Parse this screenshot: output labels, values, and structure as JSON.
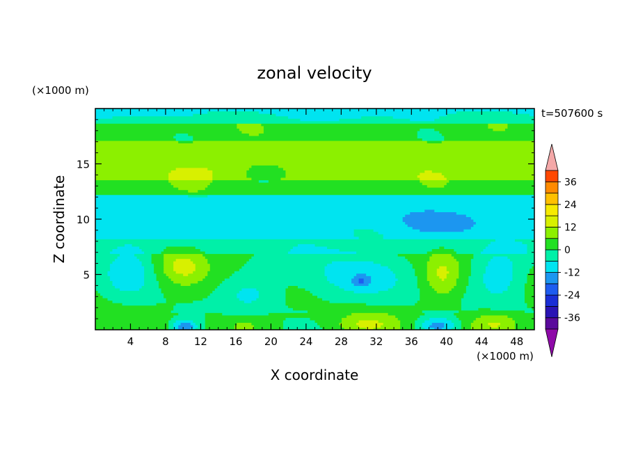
{
  "chart_data": {
    "type": "heatmap",
    "title": "zonal velocity",
    "xlabel": "X coordinate",
    "ylabel": "Z coordinate",
    "x_unit": "(×1000 m)",
    "y_unit": "(×1000 m)",
    "time_label": "t=507600 s",
    "xlim": [
      0,
      50
    ],
    "ylim": [
      0,
      20
    ],
    "x_ticks": [
      4,
      8,
      12,
      16,
      20,
      24,
      28,
      32,
      36,
      40,
      44,
      48
    ],
    "y_ticks": [
      5,
      10,
      15
    ],
    "colorbar": {
      "tick_labels": [
        "36",
        "24",
        "12",
        "0",
        "-12",
        "-24",
        "-36"
      ],
      "tick_values": [
        36,
        24,
        12,
        0,
        -12,
        -24,
        -36
      ],
      "levels": [
        -42,
        -36,
        -30,
        -24,
        -18,
        -12,
        -6,
        0,
        6,
        12,
        18,
        24,
        30,
        36,
        42
      ],
      "colors": [
        "#5a0a9c",
        "#2a14b4",
        "#1a2ed6",
        "#1e5cf0",
        "#1c96f0",
        "#00e4f0",
        "#00f0a8",
        "#22e022",
        "#8cf000",
        "#d8f000",
        "#f6ea00",
        "#ffc000",
        "#ff8a00",
        "#ff4800",
        "#ee1a1a"
      ],
      "under_color": "#8e0aa8",
      "over_color": "#f4a8a8"
    },
    "grid": false,
    "legend": "right"
  }
}
